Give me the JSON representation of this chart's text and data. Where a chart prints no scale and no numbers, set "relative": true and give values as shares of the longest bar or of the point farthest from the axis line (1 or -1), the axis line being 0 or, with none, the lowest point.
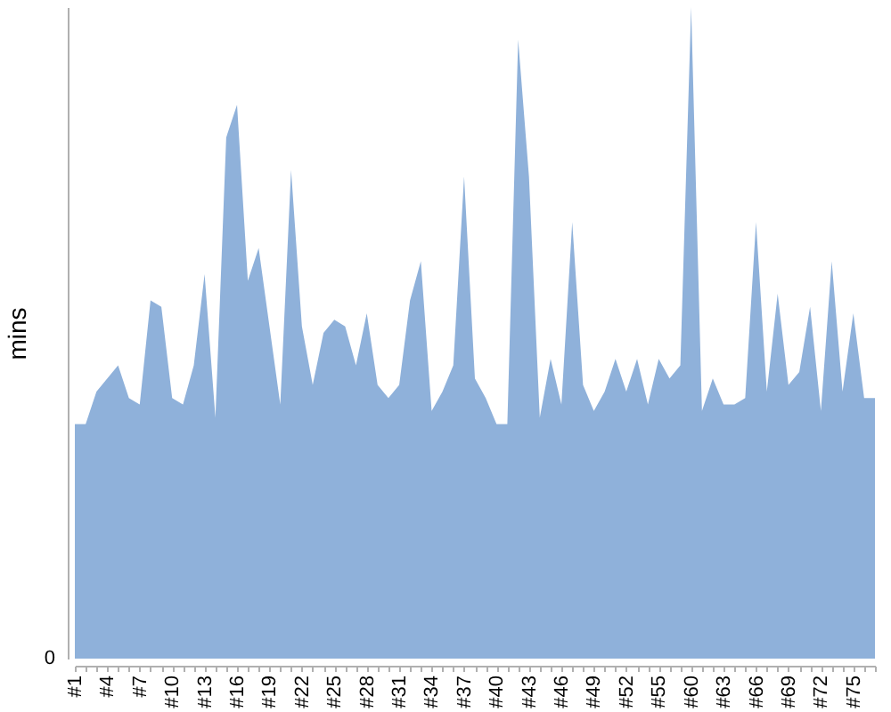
{
  "chart_data": {
    "type": "area",
    "ylabel": "mins",
    "relative": true,
    "annotations": [
      "0"
    ],
    "color": "#8fb1da",
    "categories": [
      "#1",
      null,
      null,
      "#4",
      null,
      null,
      "#7",
      null,
      null,
      "#10",
      null,
      null,
      "#13",
      null,
      null,
      "#16",
      null,
      null,
      "#19",
      null,
      null,
      "#22",
      null,
      null,
      "#25",
      null,
      null,
      "#28",
      null,
      null,
      "#31",
      null,
      null,
      "#34",
      null,
      null,
      "#37",
      null,
      null,
      "#40",
      null,
      null,
      "#43",
      null,
      null,
      "#46",
      null,
      null,
      "#49",
      null,
      null,
      "#52",
      null,
      null,
      "#55",
      null,
      null,
      "#60",
      null,
      null,
      "#63",
      null,
      null,
      "#66",
      null,
      null,
      "#69",
      null,
      null,
      "#72",
      null,
      null,
      "#75",
      null,
      null
    ],
    "values": [
      0.36,
      0.36,
      0.41,
      0.43,
      0.45,
      0.4,
      0.39,
      0.55,
      0.54,
      0.4,
      0.39,
      0.45,
      0.59,
      0.37,
      0.8,
      0.85,
      0.58,
      0.63,
      0.51,
      0.39,
      0.75,
      0.51,
      0.42,
      0.5,
      0.52,
      0.51,
      0.45,
      0.53,
      0.42,
      0.4,
      0.42,
      0.55,
      0.61,
      0.38,
      0.41,
      0.45,
      0.74,
      0.43,
      0.4,
      0.36,
      0.36,
      0.95,
      0.74,
      0.37,
      0.46,
      0.39,
      0.67,
      0.42,
      0.38,
      0.41,
      0.46,
      0.41,
      0.46,
      0.39,
      0.46,
      0.43,
      0.45,
      1,
      0.38,
      0.43,
      0.39,
      0.39,
      0.4,
      0.67,
      0.41,
      0.56,
      0.42,
      0.44,
      0.54,
      0.38,
      0.61,
      0.41,
      0.53,
      0.4,
      0.4
    ]
  }
}
